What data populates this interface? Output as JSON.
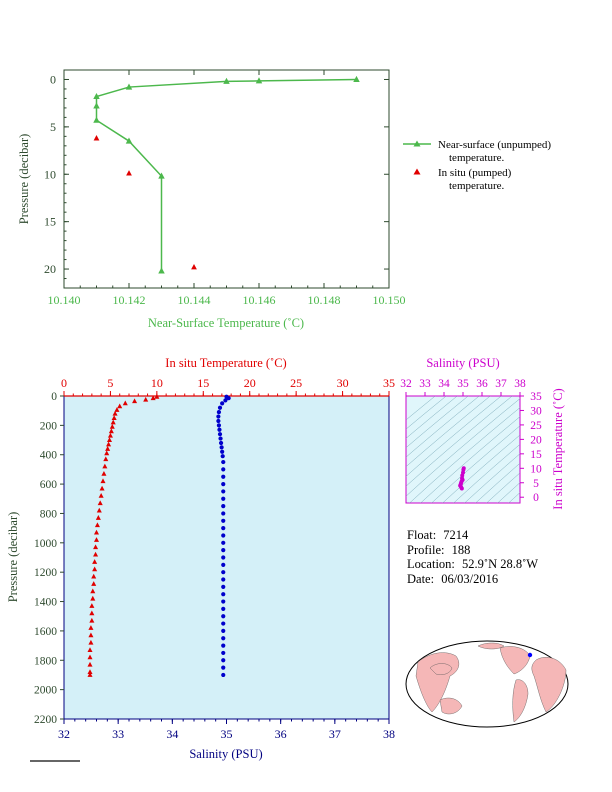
{
  "colors": {
    "green": "#4cb84c",
    "red": "#e00000",
    "blue": "#0000cc",
    "magenta": "#cc00cc",
    "navy": "#000080",
    "panel_bg": "#d4f0f8",
    "ts_bg": "#e0f6fb",
    "axis_dark": "#2e4a2e",
    "land": "#f5b7b7",
    "ocean": "#ffffff"
  },
  "chart_data": [
    {
      "type": "line",
      "xlabel": "Near-Surface Temperature (˚C)",
      "ylabel": "Pressure (decibar)",
      "xlim": [
        10.14,
        10.15
      ],
      "ylim": [
        22,
        -1
      ],
      "x_ticks": [
        "10.140",
        "10.142",
        "10.144",
        "10.146",
        "10.148",
        "10.150"
      ],
      "y_ticks": [
        "0",
        "5",
        "10",
        "15",
        "20"
      ],
      "legend_position": "right",
      "series": [
        {
          "name": "Near-surface (unpumped) temperature.",
          "style": "line-triangle",
          "color": "#4cb84c",
          "points": [
            [
              10.149,
              0.0
            ],
            [
              10.146,
              0.15
            ],
            [
              10.145,
              0.2
            ],
            [
              10.142,
              0.8
            ],
            [
              10.141,
              1.8
            ],
            [
              10.141,
              2.8
            ],
            [
              10.141,
              4.3
            ],
            [
              10.142,
              6.5
            ],
            [
              10.143,
              10.2
            ],
            [
              10.143,
              20.2
            ]
          ]
        },
        {
          "name": "In situ (pumped) temperature.",
          "style": "triangle",
          "color": "#e00000",
          "points": [
            [
              10.141,
              6.2
            ],
            [
              10.142,
              9.9
            ],
            [
              10.144,
              19.8
            ]
          ]
        }
      ]
    },
    {
      "type": "scatter",
      "ylabel": "Pressure (decibar)",
      "top_xlabel": "In situ Temperature (˚C)",
      "bottom_xlabel": "Salinity (PSU)",
      "temp_xlim": [
        0,
        35
      ],
      "sal_xlim": [
        32,
        38
      ],
      "ylim": [
        2200,
        0
      ],
      "temp_ticks": [
        "0",
        "5",
        "10",
        "15",
        "20",
        "25",
        "30",
        "35"
      ],
      "sal_ticks": [
        "32",
        "33",
        "34",
        "35",
        "36",
        "37",
        "38"
      ],
      "p_ticks": [
        "0",
        "200",
        "400",
        "600",
        "800",
        "1000",
        "1200",
        "1400",
        "1600",
        "1800",
        "2000",
        "2200"
      ],
      "series": [
        {
          "name": "In situ Temperature",
          "color": "#e00000",
          "marker": "triangle",
          "points": [
            [
              10.0,
              5
            ],
            [
              9.6,
              15
            ],
            [
              8.8,
              25
            ],
            [
              7.6,
              35
            ],
            [
              6.6,
              50
            ],
            [
              6.0,
              70
            ],
            [
              5.7,
              95
            ],
            [
              5.5,
              120
            ],
            [
              5.4,
              150
            ],
            [
              5.3,
              180
            ],
            [
              5.2,
              210
            ],
            [
              5.1,
              240
            ],
            [
              5.0,
              270
            ],
            [
              4.9,
              300
            ],
            [
              4.8,
              330
            ],
            [
              4.7,
              360
            ],
            [
              4.6,
              390
            ],
            [
              4.5,
              430
            ],
            [
              4.4,
              480
            ],
            [
              4.3,
              530
            ],
            [
              4.2,
              580
            ],
            [
              4.1,
              630
            ],
            [
              4.0,
              680
            ],
            [
              3.9,
              730
            ],
            [
              3.8,
              780
            ],
            [
              3.7,
              830
            ],
            [
              3.6,
              880
            ],
            [
              3.5,
              930
            ],
            [
              3.5,
              980
            ],
            [
              3.4,
              1030
            ],
            [
              3.4,
              1080
            ],
            [
              3.3,
              1130
            ],
            [
              3.3,
              1180
            ],
            [
              3.2,
              1230
            ],
            [
              3.2,
              1280
            ],
            [
              3.1,
              1330
            ],
            [
              3.1,
              1380
            ],
            [
              3.0,
              1430
            ],
            [
              3.0,
              1480
            ],
            [
              3.0,
              1530
            ],
            [
              2.9,
              1580
            ],
            [
              2.9,
              1630
            ],
            [
              2.9,
              1680
            ],
            [
              2.8,
              1730
            ],
            [
              2.8,
              1780
            ],
            [
              2.8,
              1830
            ],
            [
              2.8,
              1880
            ],
            [
              2.8,
              1900
            ]
          ]
        },
        {
          "name": "Salinity",
          "color": "#0000cc",
          "marker": "circle",
          "points": [
            [
              35.0,
              5
            ],
            [
              35.04,
              15
            ],
            [
              34.98,
              30
            ],
            [
              34.92,
              50
            ],
            [
              34.88,
              80
            ],
            [
              34.86,
              110
            ],
            [
              34.85,
              140
            ],
            [
              34.85,
              170
            ],
            [
              34.86,
              200
            ],
            [
              34.87,
              230
            ],
            [
              34.88,
              260
            ],
            [
              34.89,
              290
            ],
            [
              34.9,
              320
            ],
            [
              34.91,
              350
            ],
            [
              34.92,
              380
            ],
            [
              34.93,
              410
            ],
            [
              34.94,
              450
            ],
            [
              34.94,
              500
            ],
            [
              34.94,
              550
            ],
            [
              34.94,
              600
            ],
            [
              34.94,
              650
            ],
            [
              34.94,
              700
            ],
            [
              34.94,
              750
            ],
            [
              34.94,
              800
            ],
            [
              34.94,
              850
            ],
            [
              34.94,
              900
            ],
            [
              34.94,
              950
            ],
            [
              34.94,
              1000
            ],
            [
              34.94,
              1050
            ],
            [
              34.94,
              1100
            ],
            [
              34.94,
              1150
            ],
            [
              34.94,
              1200
            ],
            [
              34.94,
              1250
            ],
            [
              34.94,
              1300
            ],
            [
              34.94,
              1350
            ],
            [
              34.94,
              1400
            ],
            [
              34.94,
              1450
            ],
            [
              34.94,
              1500
            ],
            [
              34.94,
              1550
            ],
            [
              34.94,
              1600
            ],
            [
              34.94,
              1650
            ],
            [
              34.94,
              1700
            ],
            [
              34.94,
              1750
            ],
            [
              34.94,
              1800
            ],
            [
              34.94,
              1850
            ],
            [
              34.94,
              1900
            ]
          ]
        }
      ]
    },
    {
      "type": "scatter",
      "xlabel": "Salinity (PSU)",
      "ylabel": "In situ Temperature (˚C)",
      "xlim": [
        32,
        38
      ],
      "ylim": [
        -2,
        35
      ],
      "x_ticks": [
        "32",
        "33",
        "34",
        "35",
        "36",
        "37",
        "38"
      ],
      "y_ticks": [
        "0",
        "5",
        "10",
        "15",
        "20",
        "25",
        "30",
        "35"
      ],
      "series": [
        {
          "name": "",
          "color": "#cc00cc",
          "points": [
            [
              34.85,
              4.0
            ],
            [
              34.88,
              4.5
            ],
            [
              34.9,
              5.0
            ],
            [
              34.93,
              5.5
            ],
            [
              34.95,
              6.5
            ],
            [
              34.96,
              7.5
            ],
            [
              35.0,
              8.5
            ],
            [
              35.02,
              9.5
            ],
            [
              35.04,
              10.0
            ],
            [
              34.98,
              6.0
            ],
            [
              34.9,
              3.5
            ],
            [
              34.94,
              3.0
            ]
          ]
        }
      ]
    }
  ],
  "float_info": {
    "float_label": "Float:",
    "float_value": "7214",
    "profile_label": "Profile:",
    "profile_value": "188",
    "location_label": "Location:",
    "location_value": "52.9˚N  28.8˚W",
    "date_label": "Date:",
    "date_value": "06/03/2016"
  },
  "map": {
    "marker_color": "#0000ff"
  }
}
